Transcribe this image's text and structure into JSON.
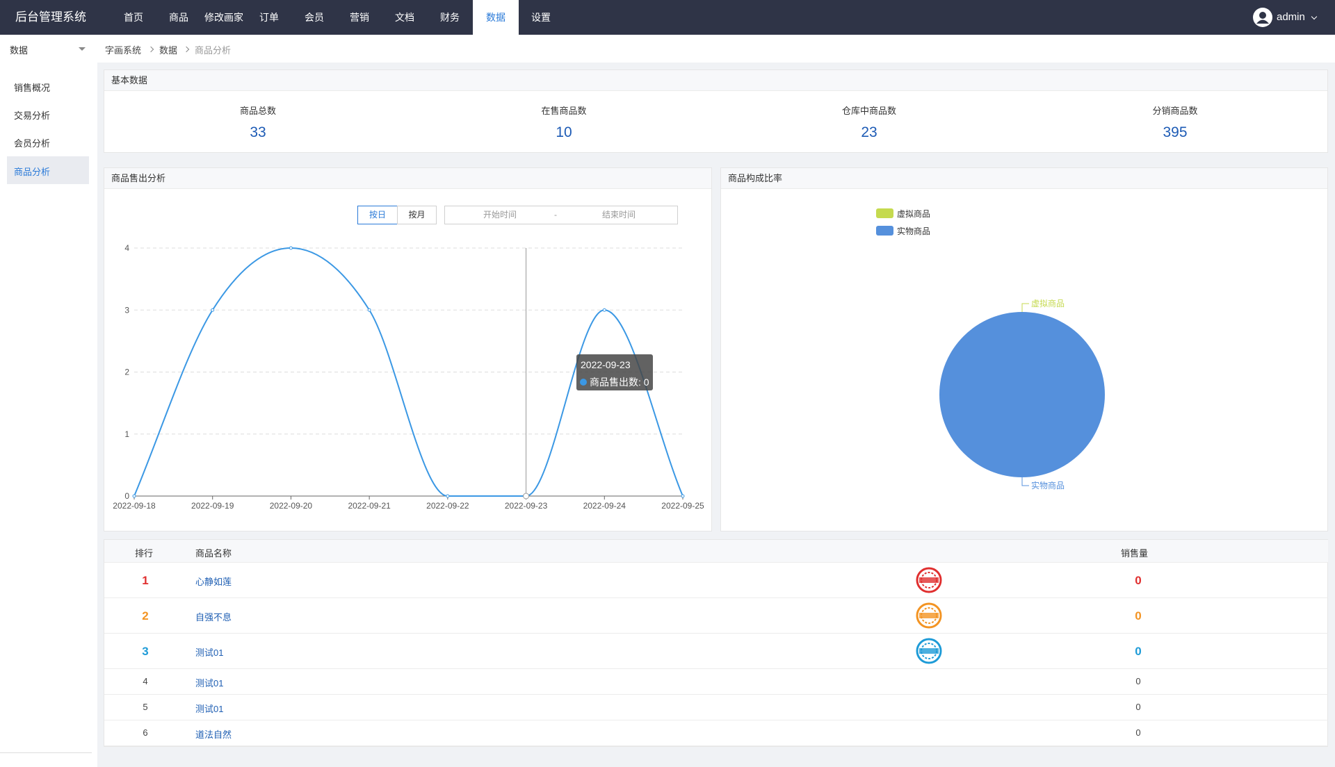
{
  "header": {
    "title": "后台管理系统",
    "nav": [
      "首页",
      "商品",
      "修改画家",
      "订单",
      "会员",
      "营销",
      "文档",
      "财务",
      "数据",
      "设置"
    ],
    "user": "admin"
  },
  "sidebar": {
    "section": "数据",
    "items": [
      "销售概况",
      "交易分析",
      "会员分析",
      "商品分析"
    ]
  },
  "breadcrumb": [
    "字画系统",
    "数据",
    "商品分析"
  ],
  "stats": {
    "title": "基本数据",
    "items": [
      {
        "label": "商品总数",
        "value": 33
      },
      {
        "label": "在售商品数",
        "value": 10
      },
      {
        "label": "仓库中商品数",
        "value": 23
      },
      {
        "label": "分销商品数",
        "value": 395
      }
    ]
  },
  "chart_data": [
    {
      "type": "line",
      "title": "商品售出分析",
      "buttons": [
        "按日",
        "按月"
      ],
      "date_range": [
        "开始时间",
        "-",
        "结束时间"
      ],
      "x": [
        "2022-09-18",
        "2022-09-19",
        "2022-09-20",
        "2022-09-21",
        "2022-09-22",
        "2022-09-23",
        "2022-09-24",
        "2022-09-25"
      ],
      "series": [
        {
          "name": "商品售出数",
          "color": "#3b98e4",
          "values": [
            0,
            3,
            4,
            3,
            0,
            0,
            3,
            0
          ]
        }
      ],
      "ylim": [
        0,
        4
      ],
      "yticks": [
        0,
        1,
        2,
        3,
        4
      ],
      "grid": true,
      "smooth": true,
      "tooltip": {
        "x": "2022-09-23",
        "text": "商品售出数: 0"
      }
    },
    {
      "type": "pie",
      "title": "商品构成比率",
      "categories": [
        "虚拟商品",
        "实物商品"
      ],
      "values": [
        0,
        100
      ],
      "colors": [
        "#c5da4f",
        "#5590dc"
      ],
      "legend": "top-left"
    }
  ],
  "table": {
    "headers": [
      "排行",
      "商品名称",
      "销售量"
    ],
    "rows": [
      [
        1,
        "心静如莲",
        0
      ],
      [
        2,
        "自强不息",
        0
      ],
      [
        3,
        "测试01",
        0
      ],
      [
        4,
        "测试01",
        0
      ],
      [
        5,
        "测试01",
        0
      ],
      [
        6,
        "道法自然",
        0
      ]
    ]
  }
}
